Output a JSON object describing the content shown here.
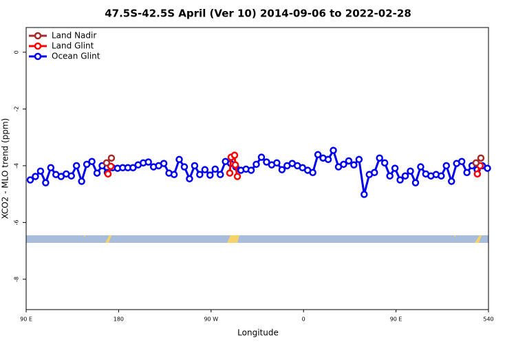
{
  "chart_data": {
    "type": "line",
    "title": "47.5S-42.5S April (Ver 10)   2014-09-06 to 2022-02-28",
    "x_label": "Longitude",
    "y_label": "XCO2 - MLO trend (ppm)",
    "xlim": [
      90,
      540
    ],
    "ylim": [
      -9.07,
      0.87
    ],
    "xticks": [
      {
        "value": 90,
        "label": "90 E"
      },
      180,
      {
        "value": 270,
        "label": "90 W"
      },
      {
        "value": 360,
        "label": "0"
      },
      {
        "value": 450,
        "label": "90 E"
      },
      540
    ],
    "yticks": [
      0,
      -2,
      -4,
      -6,
      -8
    ],
    "legend": "top-left",
    "series": [
      {
        "name": "Land Nadir",
        "color": "#a52a2a",
        "x": [
          168.3,
          173.0,
          null,
          527.9,
          532.6
        ],
        "values": [
          -3.9,
          -3.73,
          null,
          -3.9,
          -3.73
        ]
      },
      {
        "name": "Land Glint",
        "color": "#ff0000",
        "x": [
          169.7,
          172.4,
          null,
          288.2,
          289.5,
          292.9,
          293.6,
          295.6,
          null,
          529.2,
          531.9
        ],
        "values": [
          -4.29,
          -4.02,
          null,
          -4.26,
          -3.7,
          -3.63,
          -3.97,
          -4.38,
          null,
          -4.29,
          -4.0
        ]
      },
      {
        "name": "Ocean Glint",
        "color": "#0000ee",
        "x": [
          94,
          99,
          104,
          109,
          114,
          119,
          124,
          129,
          134,
          139,
          144,
          149,
          154,
          159,
          164,
          169,
          174,
          179,
          184,
          189,
          194,
          199,
          204,
          209,
          214,
          219,
          224,
          229,
          234,
          239,
          244,
          249,
          254,
          259,
          264,
          269,
          274,
          279,
          284,
          289,
          294,
          299,
          304,
          309,
          314,
          319,
          324,
          329,
          334,
          339,
          344,
          349,
          354,
          359,
          364,
          369,
          374,
          379,
          384,
          389,
          394,
          399,
          404,
          409,
          414,
          419,
          424,
          429,
          434,
          439,
          444,
          449,
          454,
          459,
          464,
          469,
          474,
          479,
          484,
          489,
          494,
          499,
          504,
          509,
          514,
          519,
          524,
          529,
          534,
          539
        ],
        "values": [
          -4.5,
          -4.38,
          -4.19,
          -4.6,
          -4.07,
          -4.31,
          -4.38,
          -4.29,
          -4.36,
          -4.0,
          -4.55,
          -3.95,
          -3.85,
          -4.26,
          -4.0,
          -4.24,
          -4.07,
          -4.09,
          -4.07,
          -4.07,
          -4.07,
          -3.97,
          -3.9,
          -3.87,
          -4.04,
          -4.0,
          -3.92,
          -4.26,
          -4.31,
          -3.78,
          -4.04,
          -4.46,
          -4.0,
          -4.31,
          -4.14,
          -4.33,
          -4.12,
          -4.31,
          -3.85,
          -3.92,
          -4.04,
          -4.16,
          -4.12,
          -4.16,
          -3.95,
          -3.7,
          -3.87,
          -3.97,
          -3.9,
          -4.14,
          -4.0,
          -3.92,
          -4.0,
          -4.07,
          -4.16,
          -4.24,
          -3.61,
          -3.73,
          -3.78,
          -3.46,
          -4.04,
          -3.95,
          -3.83,
          -3.97,
          -3.78,
          -5.01,
          -4.31,
          -4.24,
          -3.73,
          -3.9,
          -4.36,
          -4.09,
          -4.5,
          -4.36,
          -4.19,
          -4.6,
          -4.04,
          -4.29,
          -4.36,
          -4.31,
          -4.36,
          -4.0,
          -4.55,
          -3.92,
          -3.85,
          -4.24,
          -4.0,
          -4.14,
          -4.0,
          -4.09
        ]
      }
    ]
  }
}
